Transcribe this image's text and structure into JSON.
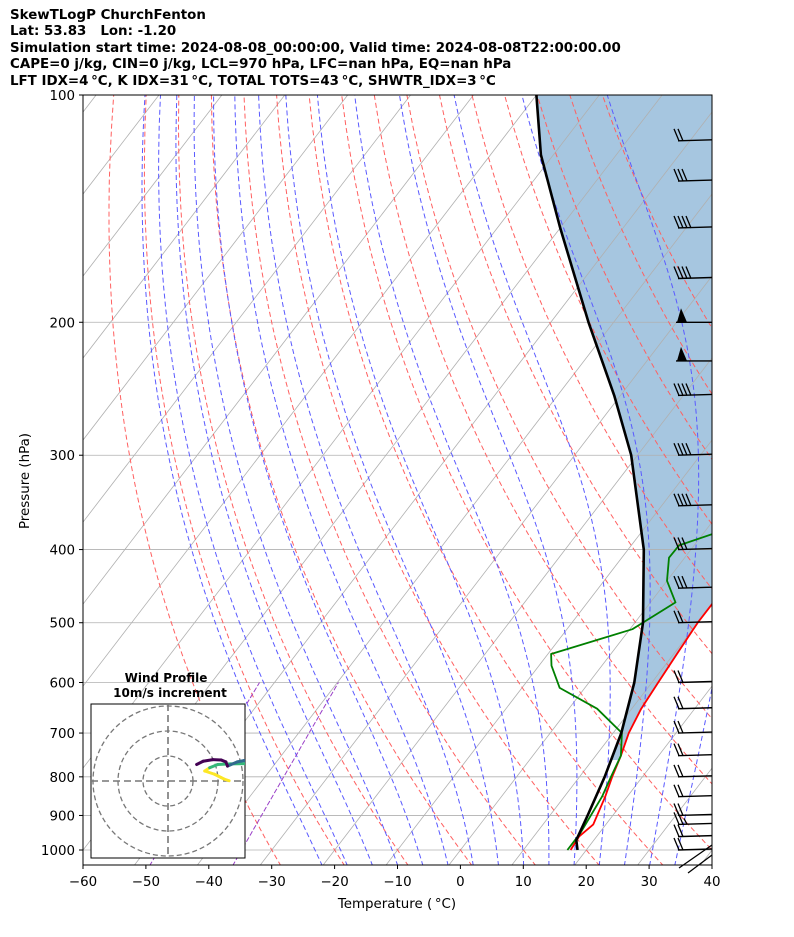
{
  "header": {
    "lines": [
      "SkewTLogP ChurchFenton",
      "Lat: 53.83   Lon: -1.20",
      "Simulation start time: 2024-08-08_00:00:00, Valid time: 2024-08-08T22:00:00.00",
      "CAPE=0 j/kg, CIN=0 j/kg, LCL=970 hPa, LFC=nan hPa, EQ=nan hPa",
      "LFT IDX=4 °C, K IDX=31 °C, TOTAL TOTS=43 °C, SHWTR_IDX=3 °C"
    ]
  },
  "chart_data": {
    "type": "skew-t log-p",
    "xlabel": "Temperature ( °C)",
    "ylabel": "Pressure (hPa)",
    "xlim": [
      -60,
      40
    ],
    "ylim": [
      1050,
      100
    ],
    "x_ticks": [
      -60,
      -50,
      -40,
      -30,
      -20,
      -10,
      0,
      10,
      20,
      30,
      40
    ],
    "x_tick_labels": [
      "−60",
      "−50",
      "−40",
      "−30",
      "−20",
      "−10",
      "0",
      "10",
      "20",
      "30",
      "40"
    ],
    "y_ticks": [
      1000,
      900,
      800,
      700,
      600,
      500,
      400,
      300,
      200,
      100
    ],
    "y_tick_labels": [
      "1000",
      "900",
      "800",
      "700",
      "600",
      "500",
      "400",
      "300",
      "200",
      "100"
    ],
    "grid": true,
    "colors": {
      "temperature": "#ff0000",
      "dewpoint": "#008000",
      "parcel": "#000000",
      "cape_fill": "#a6c6e0",
      "isotherm": "#b0b0b0",
      "dry_adiabat": "#ff6060",
      "moist_adiabat": "#5a5aff",
      "mixing_ratio": "#9a40c8"
    },
    "series": [
      {
        "key": "temperature",
        "points": [
          [
            1000,
            17.5
          ],
          [
            960,
            17.2
          ],
          [
            925,
            18
          ],
          [
            900,
            17.5
          ],
          [
            850,
            16.5
          ],
          [
            800,
            15.2
          ],
          [
            750,
            14
          ],
          [
            700,
            12.5
          ],
          [
            650,
            11.5
          ],
          [
            600,
            11
          ],
          [
            550,
            10.5
          ],
          [
            500,
            10
          ],
          [
            470,
            10
          ],
          [
            450,
            9
          ],
          [
            400,
            6.5
          ],
          [
            350,
            3.5
          ],
          [
            320,
            2.3
          ],
          [
            300,
            0.5
          ],
          [
            280,
            -1.5
          ],
          [
            260,
            -3.8
          ],
          [
            240,
            -6.5
          ],
          [
            225,
            -8.3
          ],
          [
            210,
            -8.2
          ],
          [
            200,
            -6.4
          ],
          [
            185,
            -4.7
          ],
          [
            170,
            -2.3
          ],
          [
            155,
            0.2
          ],
          [
            140,
            4.4
          ],
          [
            130,
            7.4
          ],
          [
            120,
            10.6
          ],
          [
            110,
            13.3
          ],
          [
            105,
            15.2
          ],
          [
            100,
            16
          ]
        ]
      },
      {
        "key": "dewpoint",
        "points": [
          [
            1000,
            17
          ],
          [
            975,
            17
          ],
          [
            950,
            17
          ],
          [
            900,
            16.5
          ],
          [
            850,
            16
          ],
          [
            800,
            15
          ],
          [
            750,
            14
          ],
          [
            700,
            11.4
          ],
          [
            650,
            4.5
          ],
          [
            610,
            -4
          ],
          [
            570,
            -8
          ],
          [
            550,
            -9.5
          ],
          [
            510,
            0.4
          ],
          [
            470,
            4
          ],
          [
            440,
            0
          ],
          [
            410,
            -2.5
          ],
          [
            395,
            -2.4
          ],
          [
            380,
            2
          ],
          [
            360,
            4
          ],
          [
            335,
            2.6
          ],
          [
            315,
            -2
          ],
          [
            300,
            -4.3
          ],
          [
            280,
            -5
          ],
          [
            260,
            -5
          ],
          [
            240,
            -8.4
          ],
          [
            225,
            -10
          ],
          [
            210,
            -9.5
          ],
          [
            200,
            -7.5
          ],
          [
            190,
            -8.5
          ],
          [
            180,
            -14.5
          ],
          [
            167,
            -24
          ],
          [
            150,
            -22.2
          ],
          [
            135,
            -19
          ],
          [
            115,
            -14.5
          ],
          [
            100,
            -10
          ]
        ]
      },
      {
        "key": "parcel",
        "points": [
          [
            1000,
            18.6
          ],
          [
            970,
            17.2
          ],
          [
            900,
            16
          ],
          [
            800,
            14
          ],
          [
            700,
            11.3
          ],
          [
            600,
            7.2
          ],
          [
            500,
            1.3
          ],
          [
            400,
            -7.5
          ],
          [
            300,
            -21
          ],
          [
            250,
            -31
          ],
          [
            200,
            -44
          ],
          [
            150,
            -60
          ],
          [
            120,
            -72
          ],
          [
            100,
            -80
          ]
        ]
      }
    ],
    "wind_barbs": [
      {
        "pressure": 1000,
        "type": "barb",
        "flags": 0,
        "full": 2,
        "half": 0
      },
      {
        "pressure": 960,
        "type": "barb",
        "flags": 0,
        "full": 2,
        "half": 0
      },
      {
        "pressure": 925,
        "type": "barb",
        "flags": 0,
        "full": 2,
        "half": 1
      },
      {
        "pressure": 900,
        "type": "barb",
        "flags": 0,
        "full": 2,
        "half": 0
      },
      {
        "pressure": 850,
        "type": "barb",
        "flags": 0,
        "full": 2,
        "half": 0
      },
      {
        "pressure": 800,
        "type": "barb",
        "flags": 0,
        "full": 2,
        "half": 0
      },
      {
        "pressure": 750,
        "type": "barb",
        "flags": 0,
        "full": 2,
        "half": 0
      },
      {
        "pressure": 700,
        "type": "barb",
        "flags": 0,
        "full": 2,
        "half": 0
      },
      {
        "pressure": 650,
        "type": "barb",
        "flags": 0,
        "full": 2,
        "half": 0
      },
      {
        "pressure": 600,
        "type": "barb",
        "flags": 0,
        "full": 2,
        "half": 0
      },
      {
        "pressure": 500,
        "type": "barb",
        "flags": 0,
        "full": 2,
        "half": 0
      },
      {
        "pressure": 450,
        "type": "barb",
        "flags": 0,
        "full": 3,
        "half": 0
      },
      {
        "pressure": 400,
        "type": "barb",
        "flags": 0,
        "full": 3,
        "half": 0
      },
      {
        "pressure": 350,
        "type": "barb",
        "flags": 0,
        "full": 4,
        "half": 0
      },
      {
        "pressure": 300,
        "type": "barb",
        "flags": 0,
        "full": 4,
        "half": 0
      },
      {
        "pressure": 250,
        "type": "barb",
        "flags": 0,
        "full": 4,
        "half": 0
      },
      {
        "pressure": 225,
        "type": "flag",
        "flags": 1,
        "full": 0,
        "half": 0
      },
      {
        "pressure": 200,
        "type": "flag",
        "flags": 1,
        "full": 0,
        "half": 0
      },
      {
        "pressure": 175,
        "type": "barb",
        "flags": 0,
        "full": 4,
        "half": 0
      },
      {
        "pressure": 150,
        "type": "barb",
        "flags": 0,
        "full": 4,
        "half": 0
      },
      {
        "pressure": 130,
        "type": "barb",
        "flags": 0,
        "full": 3,
        "half": 0
      },
      {
        "pressure": 115,
        "type": "barb",
        "flags": 0,
        "full": 2,
        "half": 0
      }
    ],
    "inset": {
      "title": "Wind Profile",
      "subtitle": "10m/s increment",
      "rings": [
        10,
        20,
        30
      ],
      "colormap": [
        "#fde725",
        "#35b779",
        "#31688e",
        "#440154"
      ],
      "hodograph": [
        [
          6.5,
          -3
        ],
        [
          5,
          -2.5
        ],
        [
          4,
          -2
        ],
        [
          2,
          -1
        ],
        [
          -1,
          0
        ],
        [
          0.5,
          1
        ],
        [
          3,
          2
        ],
        [
          7,
          2.2
        ],
        [
          12,
          2.3
        ],
        [
          15,
          2.3
        ],
        [
          14,
          2.8
        ],
        [
          11,
          3.2
        ],
        [
          9,
          2.8
        ],
        [
          6,
          1.5
        ],
        [
          5.5,
          2.8
        ],
        [
          4,
          3.4
        ],
        [
          1.5,
          3.5
        ],
        [
          -1.5,
          3
        ],
        [
          -3.5,
          2
        ]
      ]
    }
  }
}
